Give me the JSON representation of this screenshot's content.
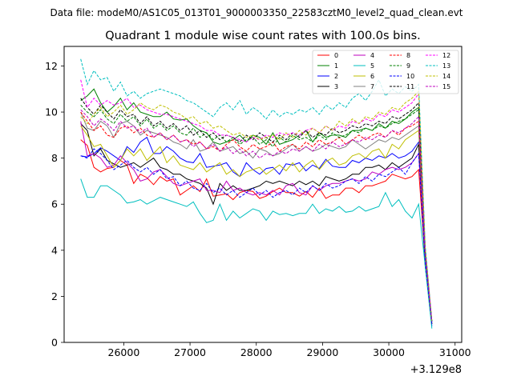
{
  "header": {
    "datafile": "Data file: modeM0/AS1C05_013T01_9000003350_22583cztM0_level2_quad_clean.evt"
  },
  "chart_data": {
    "type": "line",
    "title": "Quadrant 1 module wise count rates with 100.0s bins.",
    "xlabel": "",
    "ylabel": "",
    "x_offset_label": "+3.129e8",
    "xlim": [
      25100,
      31100
    ],
    "ylim": [
      0,
      12.85
    ],
    "xticks": [
      26000,
      27000,
      28000,
      29000,
      30000,
      31000
    ],
    "yticks": [
      0,
      2,
      4,
      6,
      8,
      10,
      12
    ],
    "legend_position": "top-right",
    "x_start": 25350,
    "x_step": 100,
    "series": [
      {
        "name": "0",
        "color": "#ff0000",
        "dash": "solid",
        "values": [
          8.8,
          8.55,
          7.6,
          7.4,
          7.55,
          7.6,
          7.9,
          7.7,
          6.9,
          7.3,
          7.15,
          6.85,
          7.2,
          7.0,
          7.1,
          6.4,
          6.6,
          6.8,
          6.55,
          7.1,
          6.35,
          6.4,
          6.45,
          6.2,
          6.5,
          6.6,
          6.55,
          6.25,
          6.35,
          6.55,
          6.7,
          6.5,
          6.5,
          6.35,
          6.55,
          6.3,
          6.7,
          6.25,
          6.4,
          6.4,
          6.7,
          6.7,
          6.5,
          6.8,
          6.8,
          6.9,
          7.0,
          7.3,
          7.2,
          7.1,
          7.2,
          7.5,
          3.5,
          0.8
        ]
      },
      {
        "name": "1",
        "color": "#008000",
        "dash": "solid",
        "values": [
          10.5,
          10.7,
          11.0,
          10.4,
          10.0,
          10.25,
          10.6,
          10.1,
          10.4,
          10.0,
          9.9,
          9.8,
          9.8,
          10.0,
          9.7,
          9.65,
          9.7,
          9.4,
          9.2,
          9.1,
          8.7,
          8.6,
          8.7,
          8.8,
          9.0,
          8.7,
          9.0,
          8.9,
          8.6,
          9.1,
          8.6,
          8.7,
          8.8,
          9.0,
          9.2,
          8.7,
          9.1,
          8.9,
          9.0,
          9.0,
          8.9,
          9.2,
          9.2,
          9.3,
          9.2,
          9.5,
          9.3,
          9.6,
          9.5,
          9.7,
          10.0,
          10.2,
          3.8,
          0.9
        ]
      },
      {
        "name": "2",
        "color": "#0000ff",
        "dash": "solid",
        "values": [
          8.1,
          8.05,
          8.2,
          8.45,
          8.3,
          8.1,
          7.9,
          8.5,
          8.25,
          8.7,
          8.9,
          8.2,
          8.2,
          8.5,
          8.3,
          8.0,
          7.85,
          7.8,
          8.2,
          7.6,
          7.65,
          7.7,
          7.8,
          7.4,
          7.2,
          7.8,
          7.5,
          7.3,
          7.55,
          7.6,
          7.3,
          7.75,
          7.7,
          7.8,
          7.45,
          7.7,
          7.55,
          7.95,
          7.65,
          7.6,
          7.6,
          7.9,
          7.8,
          8.0,
          7.9,
          8.1,
          8.0,
          8.2,
          8.0,
          8.1,
          8.3,
          8.7,
          3.8,
          0.7
        ]
      },
      {
        "name": "3",
        "color": "#000000",
        "dash": "solid",
        "values": [
          9.5,
          9.2,
          8.1,
          8.4,
          7.9,
          7.75,
          7.6,
          7.7,
          7.8,
          7.6,
          7.8,
          8.0,
          7.6,
          7.5,
          7.3,
          7.3,
          7.1,
          7.0,
          6.9,
          6.7,
          6.0,
          6.9,
          6.6,
          6.8,
          6.6,
          6.6,
          6.7,
          6.8,
          7.0,
          6.9,
          7.0,
          6.9,
          6.8,
          7.0,
          6.85,
          7.0,
          6.8,
          7.2,
          7.1,
          7.0,
          7.1,
          7.3,
          7.3,
          7.6,
          7.6,
          7.7,
          7.5,
          7.8,
          7.6,
          7.8,
          8.0,
          8.6,
          3.3,
          0.8
        ]
      },
      {
        "name": "4",
        "color": "#bf00bf",
        "dash": "solid",
        "values": [
          9.6,
          8.1,
          8.2,
          8.0,
          7.6,
          7.7,
          8.1,
          7.8,
          7.5,
          7.0,
          7.1,
          7.4,
          7.5,
          7.2,
          6.9,
          6.8,
          6.9,
          7.0,
          7.1,
          6.6,
          6.6,
          6.5,
          7.0,
          6.6,
          6.7,
          6.5,
          6.4,
          6.5,
          6.4,
          6.6,
          6.4,
          6.8,
          6.9,
          6.5,
          6.4,
          6.8,
          6.6,
          6.8,
          6.9,
          6.9,
          7.0,
          7.1,
          7.0,
          7.1,
          7.4,
          7.3,
          7.5,
          7.6,
          7.5,
          7.6,
          7.8,
          8.2,
          3.6,
          0.9
        ]
      },
      {
        "name": "5",
        "color": "#00bfbf",
        "dash": "solid",
        "values": [
          7.1,
          6.3,
          6.3,
          6.8,
          6.8,
          6.6,
          6.4,
          6.05,
          6.1,
          6.2,
          6.0,
          6.15,
          6.3,
          6.2,
          6.1,
          6.0,
          5.9,
          6.1,
          5.6,
          5.2,
          5.3,
          6.0,
          5.3,
          5.7,
          5.4,
          5.6,
          5.8,
          5.7,
          5.3,
          5.7,
          5.55,
          5.6,
          5.5,
          5.6,
          5.6,
          6.0,
          5.6,
          5.8,
          5.7,
          5.9,
          5.65,
          5.7,
          5.9,
          5.7,
          5.8,
          5.9,
          6.5,
          5.9,
          6.2,
          5.7,
          5.4,
          6.0,
          3.3,
          0.6
        ]
      },
      {
        "name": "6",
        "color": "#bfbf00",
        "dash": "solid",
        "values": [
          9.4,
          9.0,
          8.5,
          8.6,
          8.1,
          7.6,
          7.9,
          8.4,
          8.1,
          8.4,
          7.9,
          8.2,
          8.5,
          7.8,
          8.1,
          7.7,
          7.6,
          7.5,
          7.8,
          7.4,
          7.6,
          7.8,
          7.3,
          7.5,
          7.2,
          7.4,
          7.5,
          7.6,
          7.3,
          7.5,
          7.7,
          7.45,
          7.8,
          7.4,
          7.7,
          7.9,
          7.5,
          7.85,
          8.0,
          7.7,
          7.8,
          8.1,
          8.2,
          8.0,
          8.3,
          8.4,
          8.0,
          8.6,
          8.4,
          8.8,
          9.0,
          9.2,
          3.7,
          0.8
        ]
      },
      {
        "name": "7",
        "color": "#808080",
        "dash": "solid",
        "values": [
          10.0,
          9.3,
          9.2,
          9.6,
          9.4,
          8.9,
          9.5,
          9.6,
          9.4,
          9.0,
          9.2,
          9.1,
          9.0,
          8.9,
          8.7,
          8.6,
          8.4,
          8.8,
          8.3,
          8.4,
          8.7,
          8.3,
          8.4,
          8.5,
          8.2,
          8.3,
          8.0,
          8.4,
          8.3,
          8.1,
          8.2,
          8.4,
          8.6,
          8.3,
          8.5,
          8.3,
          8.4,
          8.6,
          8.5,
          8.4,
          8.5,
          8.8,
          8.6,
          8.4,
          8.6,
          8.8,
          8.7,
          8.9,
          8.8,
          9.0,
          9.2,
          9.4,
          3.8,
          0.9
        ]
      },
      {
        "name": "8",
        "color": "#ff0000",
        "dash": "dashed",
        "values": [
          10.0,
          9.6,
          9.2,
          9.4,
          9.0,
          8.9,
          9.3,
          9.4,
          9.1,
          9.3,
          9.0,
          8.9,
          9.1,
          8.8,
          9.0,
          8.7,
          8.8,
          8.6,
          8.7,
          8.4,
          8.5,
          8.3,
          8.6,
          8.8,
          8.5,
          8.3,
          8.6,
          8.4,
          8.5,
          8.7,
          8.3,
          8.5,
          8.6,
          8.4,
          8.7,
          8.5,
          8.8,
          8.6,
          8.7,
          8.9,
          8.6,
          8.8,
          9.0,
          8.8,
          9.0,
          9.1,
          8.9,
          9.2,
          9.0,
          9.3,
          9.4,
          9.6,
          3.9,
          0.9
        ]
      },
      {
        "name": "9",
        "color": "#008000",
        "dash": "dashed",
        "values": [
          10.3,
          10.0,
          9.8,
          10.1,
          9.7,
          9.5,
          9.9,
          9.6,
          9.8,
          9.4,
          9.7,
          9.3,
          9.5,
          9.2,
          9.4,
          9.1,
          9.0,
          9.3,
          8.9,
          9.1,
          8.8,
          9.0,
          8.7,
          8.9,
          8.6,
          8.8,
          8.9,
          8.6,
          8.8,
          8.5,
          8.9,
          8.7,
          9.0,
          8.8,
          8.9,
          8.7,
          9.0,
          8.8,
          9.1,
          8.9,
          9.0,
          9.2,
          9.1,
          9.3,
          9.2,
          9.4,
          9.3,
          9.5,
          9.6,
          9.7,
          9.9,
          10.1,
          4.0,
          0.9
        ]
      },
      {
        "name": "10",
        "color": "#0000ff",
        "dash": "dashed",
        "values": [
          8.1,
          8.0,
          8.4,
          8.2,
          7.9,
          7.5,
          7.7,
          7.9,
          7.6,
          7.4,
          7.6,
          7.3,
          7.5,
          7.1,
          7.2,
          6.8,
          7.0,
          6.7,
          6.6,
          6.9,
          6.5,
          6.7,
          6.4,
          6.6,
          6.3,
          6.5,
          6.7,
          6.4,
          6.6,
          6.3,
          6.5,
          6.6,
          6.4,
          6.7,
          6.5,
          6.8,
          6.6,
          6.9,
          6.7,
          6.8,
          7.0,
          7.1,
          6.9,
          7.2,
          7.0,
          7.3,
          7.2,
          7.4,
          7.6,
          7.3,
          7.8,
          8.2,
          3.5,
          0.8
        ]
      },
      {
        "name": "11",
        "color": "#000000",
        "dash": "dashed",
        "values": [
          10.6,
          10.2,
          9.9,
          10.3,
          10.0,
          9.7,
          10.1,
          9.8,
          9.9,
          9.5,
          9.8,
          9.4,
          9.6,
          9.3,
          9.5,
          9.2,
          9.4,
          9.0,
          9.2,
          8.9,
          9.1,
          8.8,
          9.0,
          8.9,
          8.7,
          9.0,
          8.8,
          9.1,
          8.9,
          8.7,
          9.0,
          8.8,
          9.1,
          8.9,
          9.2,
          8.9,
          9.1,
          9.0,
          9.3,
          9.1,
          9.2,
          9.4,
          9.3,
          9.5,
          9.4,
          9.6,
          9.5,
          9.8,
          9.7,
          9.9,
          10.1,
          10.4,
          4.0,
          0.9
        ]
      },
      {
        "name": "12",
        "color": "#ff00ff",
        "dash": "dashed",
        "values": [
          11.4,
          10.2,
          10.6,
          10.3,
          10.5,
          10.3,
          10.4,
          10.6,
          10.2,
          10.3,
          10.1,
          10.0,
          9.9,
          9.9,
          9.8,
          9.7,
          9.6,
          9.5,
          9.4,
          9.2,
          9.2,
          9.0,
          9.0,
          8.9,
          8.8,
          8.7,
          8.9,
          8.8,
          9.0,
          8.9,
          9.1,
          9.0,
          9.1,
          9.0,
          9.2,
          9.3,
          9.1,
          9.4,
          9.2,
          9.4,
          9.3,
          9.6,
          9.5,
          9.7,
          9.6,
          9.9,
          9.8,
          10.1,
          10.0,
          10.2,
          10.4,
          10.8,
          4.1,
          0.9
        ]
      },
      {
        "name": "13",
        "color": "#00bfbf",
        "dash": "dashed",
        "values": [
          12.3,
          11.2,
          11.8,
          11.4,
          11.5,
          10.9,
          11.3,
          10.7,
          10.9,
          10.6,
          10.8,
          10.9,
          11.0,
          10.9,
          10.8,
          10.7,
          10.5,
          10.4,
          10.2,
          10.0,
          9.8,
          10.2,
          10.4,
          10.1,
          10.5,
          9.9,
          10.2,
          10.0,
          9.7,
          10.1,
          9.8,
          10.0,
          9.9,
          10.1,
          10.0,
          10.2,
          9.9,
          10.3,
          10.1,
          10.4,
          10.2,
          10.6,
          10.8,
          10.5,
          10.9,
          11.4,
          10.7,
          11.0,
          10.8,
          11.1,
          10.9,
          11.2,
          4.2,
          0.9
        ]
      },
      {
        "name": "14",
        "color": "#bfbf00",
        "dash": "dashed",
        "values": [
          9.8,
          9.5,
          9.9,
          10.2,
          9.8,
          10.0,
          10.3,
          9.9,
          10.1,
          10.4,
          10.2,
          10.1,
          10.3,
          10.2,
          10.0,
          9.9,
          9.7,
          9.8,
          9.5,
          9.6,
          9.3,
          9.4,
          9.2,
          9.0,
          9.1,
          8.9,
          9.0,
          8.8,
          8.9,
          9.0,
          8.8,
          9.1,
          8.9,
          9.2,
          9.0,
          9.3,
          9.1,
          9.4,
          9.2,
          9.6,
          9.4,
          9.7,
          9.5,
          9.8,
          9.7,
          10.0,
          9.9,
          10.2,
          10.1,
          10.4,
          10.6,
          10.9,
          4.1,
          0.9
        ]
      },
      {
        "name": "15",
        "color": "#bf00bf",
        "dash": "dashed",
        "values": [
          10.1,
          9.8,
          9.4,
          9.7,
          9.5,
          9.2,
          9.6,
          9.3,
          9.4,
          9.1,
          9.3,
          8.9,
          9.1,
          8.8,
          9.0,
          8.7,
          8.8,
          8.5,
          8.7,
          8.4,
          8.6,
          8.3,
          8.5,
          8.2,
          8.4,
          8.1,
          8.3,
          8.0,
          8.2,
          8.1,
          8.3,
          8.2,
          8.4,
          8.3,
          8.5,
          8.3,
          8.6,
          8.4,
          8.7,
          8.5,
          8.6,
          8.8,
          8.7,
          8.9,
          8.8,
          9.0,
          8.9,
          9.2,
          9.1,
          9.3,
          9.5,
          9.8,
          3.9,
          0.9
        ]
      }
    ]
  }
}
